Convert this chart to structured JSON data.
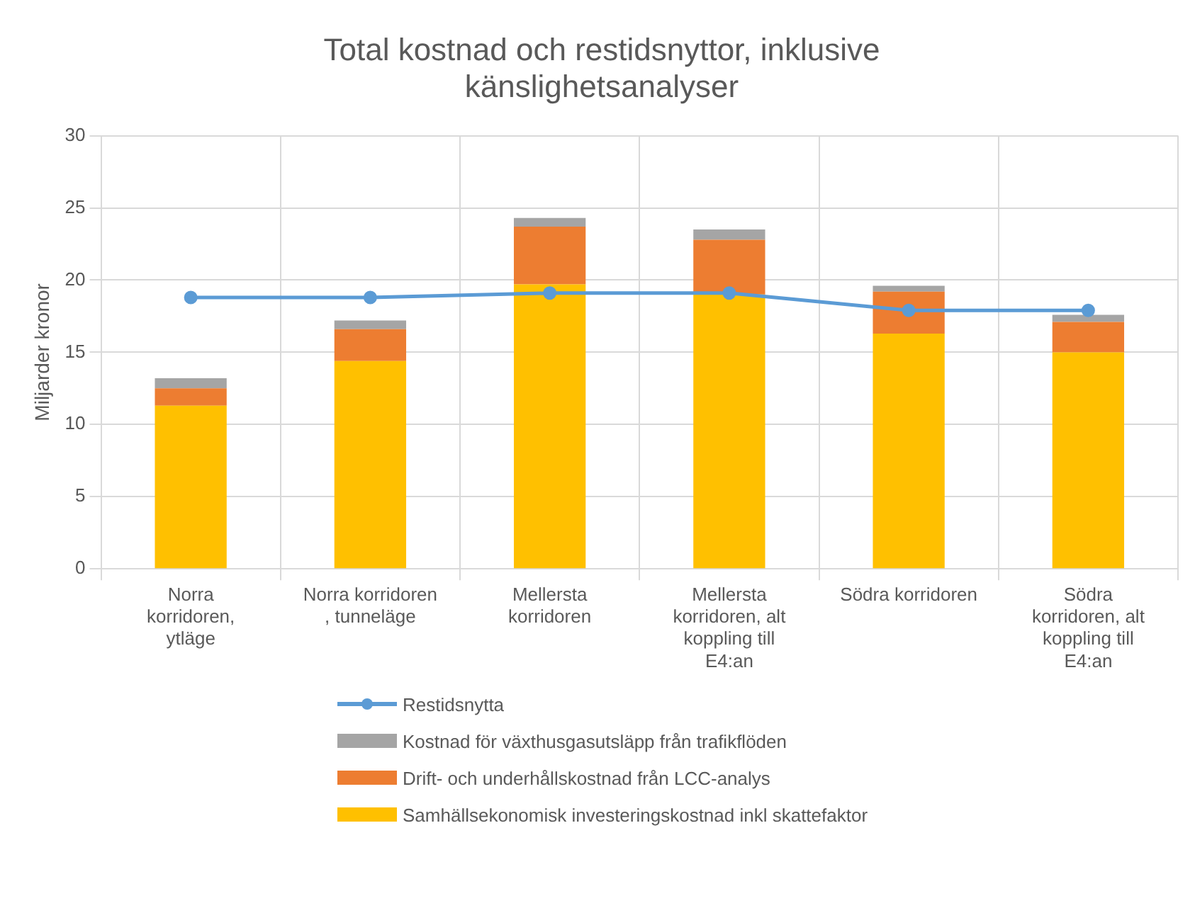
{
  "chart_data": {
    "type": "bar",
    "title": "Total kostnad och restidsnyttor, inklusive känslighetsanalyser",
    "ylabel": "Miljarder kronor",
    "categories": [
      "Norra korridoren, ytläge",
      "Norra korridoren , tunneläge",
      "Mellersta korridoren",
      "Mellersta korridoren, alt koppling till E4:an",
      "Södra korridoren",
      "Södra korridoren, alt koppling till E4:an"
    ],
    "stacked": true,
    "ylim": [
      0,
      30
    ],
    "yticks": [
      0,
      5,
      10,
      15,
      20,
      25,
      30
    ],
    "grid": true,
    "legend": "bottom",
    "series": [
      {
        "name": "Samhällsekonomisk investeringskostnad inkl skattefaktor",
        "color": "#ffc000",
        "values": [
          11.3,
          14.4,
          19.7,
          19.0,
          16.3,
          15.0
        ]
      },
      {
        "name": "Drift- och underhållskostnad från LCC-analys",
        "color": "#ed7d31",
        "values": [
          1.2,
          2.2,
          4.0,
          3.8,
          2.9,
          2.1
        ]
      },
      {
        "name": "Kostnad för växthusgasutsläpp från trafikflöden",
        "color": "#a5a5a5",
        "values": [
          0.7,
          0.6,
          0.6,
          0.7,
          0.4,
          0.5
        ]
      },
      {
        "name": "Restidsnytta",
        "type": "line",
        "color": "#5b9bd5",
        "marker": "circle",
        "values": [
          18.8,
          18.8,
          19.1,
          19.1,
          17.9,
          17.9
        ]
      }
    ]
  }
}
